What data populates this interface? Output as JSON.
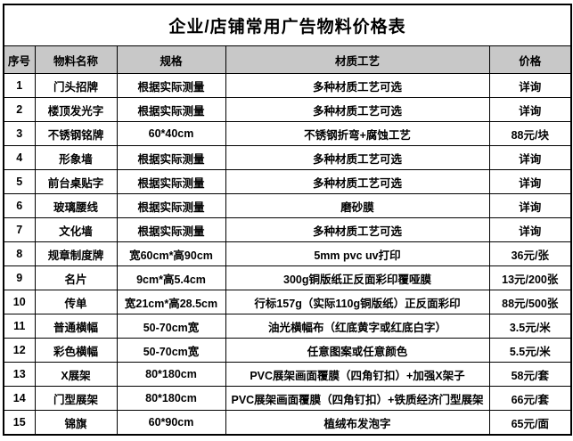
{
  "table": {
    "title": "企业/店铺常用广告物料价格表",
    "columns": {
      "no": "序号",
      "name": "物料名称",
      "spec": "规格",
      "process": "材质工艺",
      "price": "价格"
    },
    "rows": [
      {
        "no": "1",
        "name": "门头招牌",
        "spec": "根据实际测量",
        "process": "多种材质工艺可选",
        "price": "详询"
      },
      {
        "no": "2",
        "name": "楼顶发光字",
        "spec": "根据实际测量",
        "process": "多种材质工艺可选",
        "price": "详询"
      },
      {
        "no": "3",
        "name": "不锈钢铭牌",
        "spec": "60*40cm",
        "process": "不锈钢折弯+腐蚀工艺",
        "price": "88元/块"
      },
      {
        "no": "4",
        "name": "形象墙",
        "spec": "根据实际测量",
        "process": "多种材质工艺可选",
        "price": "详询"
      },
      {
        "no": "5",
        "name": "前台桌贴字",
        "spec": "根据实际测量",
        "process": "多种材质工艺可选",
        "price": "详询"
      },
      {
        "no": "6",
        "name": "玻璃腰线",
        "spec": "根据实际测量",
        "process": "磨砂膜",
        "price": "详询"
      },
      {
        "no": "7",
        "name": "文化墙",
        "spec": "根据实际测量",
        "process": "多种材质工艺可选",
        "price": "详询"
      },
      {
        "no": "8",
        "name": "规章制度牌",
        "spec": "宽60cm*高90cm",
        "process": "5mm pvc uv打印",
        "price": "36元/张"
      },
      {
        "no": "9",
        "name": "名片",
        "spec": "9cm*高5.4cm",
        "process": "300g铜版纸正反面彩印覆哑膜",
        "price": "13元/200张"
      },
      {
        "no": "10",
        "name": "传单",
        "spec": "宽21cm*高28.5cm",
        "process": "行标157g（实际110g铜版纸）正反面彩印",
        "price": "88元/500张"
      },
      {
        "no": "11",
        "name": "普通横幅",
        "spec": "50-70cm宽",
        "process": "油光横幅布（红底黄字或红底白字）",
        "price": "3.5元/米"
      },
      {
        "no": "12",
        "name": "彩色横幅",
        "spec": "50-70cm宽",
        "process": "任意图案或任意颜色",
        "price": "5.5元/米"
      },
      {
        "no": "13",
        "name": "X展架",
        "spec": "80*180cm",
        "process": "PVC展架画面覆膜（四角钉扣）+加强X架子",
        "price": "58元/套"
      },
      {
        "no": "14",
        "name": "门型展架",
        "spec": "80*180cm",
        "process": "PVC展架画面覆膜（四角钉扣）+铁质经济门型展架",
        "price": "66元/套"
      },
      {
        "no": "15",
        "name": "锦旗",
        "spec": "60*90cm",
        "process": "植绒布发泡字",
        "price": "65元/面"
      }
    ],
    "colors": {
      "header_bg": "#c8c8c8",
      "border": "#000000",
      "text": "#000000",
      "background": "#ffffff"
    }
  }
}
